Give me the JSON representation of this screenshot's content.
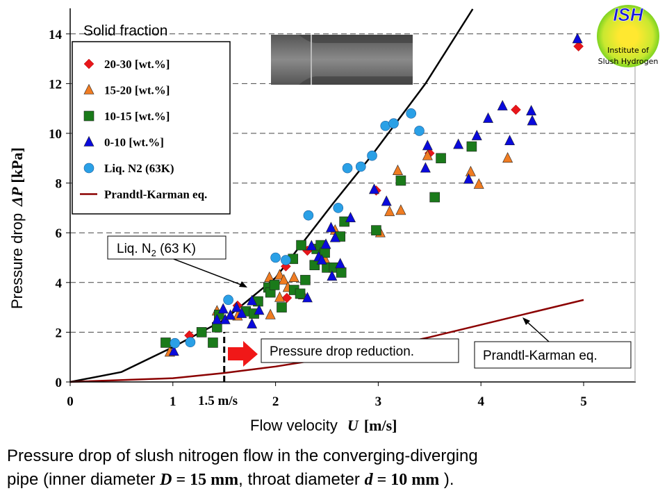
{
  "chart_data": {
    "type": "scatter",
    "xlabel": "Flow velocity",
    "xlabel_symbol": "U",
    "xlabel_unit": "[m/s]",
    "ylabel": "Pressure drop",
    "ylabel_symbol": "ΔP",
    "ylabel_unit": "[kPa]",
    "xlim": [
      0,
      5.5
    ],
    "ylim": [
      0,
      15
    ],
    "xticks": [
      0,
      1,
      2,
      3,
      4,
      5
    ],
    "yticks": [
      0,
      2,
      4,
      6,
      8,
      10,
      12,
      14
    ],
    "grid": "horizontal dashed",
    "legend_placement": "top-left",
    "legend_title": "Solid fraction",
    "series": [
      {
        "name": "20-30 [wt.%]",
        "marker": "diamond",
        "color": "#e8161b",
        "points": [
          [
            1.16,
            1.87
          ],
          [
            1.63,
            3.07
          ],
          [
            2.1,
            4.65
          ],
          [
            2.11,
            3.38
          ],
          [
            2.31,
            5.28
          ],
          [
            2.98,
            7.7
          ],
          [
            3.5,
            9.2
          ],
          [
            4.34,
            10.95
          ],
          [
            4.95,
            13.5
          ]
        ]
      },
      {
        "name": "15-20 [wt.%]",
        "marker": "triangle",
        "color": "#f07c22",
        "points": [
          [
            0.97,
            1.2
          ],
          [
            1.43,
            2.85
          ],
          [
            1.63,
            2.65
          ],
          [
            1.94,
            4.2
          ],
          [
            1.95,
            2.7
          ],
          [
            2.04,
            4.3
          ],
          [
            2.04,
            3.4
          ],
          [
            2.08,
            4.1
          ],
          [
            2.12,
            3.8
          ],
          [
            2.18,
            4.2
          ],
          [
            2.27,
            3.5
          ],
          [
            2.48,
            4.95
          ],
          [
            2.58,
            6.1
          ],
          [
            3.02,
            6.0
          ],
          [
            3.11,
            6.85
          ],
          [
            3.19,
            8.5
          ],
          [
            3.22,
            6.9
          ],
          [
            3.48,
            9.1
          ],
          [
            3.9,
            8.45
          ],
          [
            3.98,
            7.95
          ],
          [
            4.26,
            9.0
          ]
        ]
      },
      {
        "name": "10-15 [wt.%]",
        "marker": "square",
        "color": "#1a7a1a",
        "points": [
          [
            0.93,
            1.58
          ],
          [
            1.28,
            2.0
          ],
          [
            1.39,
            1.58
          ],
          [
            1.43,
            2.2
          ],
          [
            1.45,
            2.7
          ],
          [
            1.71,
            2.84
          ],
          [
            1.79,
            2.75
          ],
          [
            1.83,
            3.24
          ],
          [
            1.93,
            3.8
          ],
          [
            1.95,
            3.6
          ],
          [
            1.99,
            3.9
          ],
          [
            2.06,
            3.0
          ],
          [
            2.17,
            4.95
          ],
          [
            2.18,
            3.7
          ],
          [
            2.24,
            3.55
          ],
          [
            2.25,
            5.5
          ],
          [
            2.29,
            4.1
          ],
          [
            2.38,
            4.7
          ],
          [
            2.4,
            5.35
          ],
          [
            2.44,
            5.5
          ],
          [
            2.48,
            5.2
          ],
          [
            2.5,
            4.6
          ],
          [
            2.57,
            4.6
          ],
          [
            2.63,
            5.85
          ],
          [
            2.64,
            4.4
          ],
          [
            2.67,
            6.45
          ],
          [
            2.98,
            6.1
          ],
          [
            3.22,
            8.1
          ],
          [
            3.55,
            7.43
          ],
          [
            3.61,
            9.0
          ],
          [
            3.91,
            9.47
          ]
        ]
      },
      {
        "name": " 0-10 [wt.%]",
        "marker": "triangle",
        "color": "#0a0adc",
        "points": [
          [
            1.01,
            1.23
          ],
          [
            1.43,
            2.5
          ],
          [
            1.49,
            2.93
          ],
          [
            1.51,
            2.5
          ],
          [
            1.56,
            2.68
          ],
          [
            1.62,
            2.99
          ],
          [
            1.67,
            2.75
          ],
          [
            1.77,
            2.33
          ],
          [
            1.77,
            3.26
          ],
          [
            1.84,
            2.88
          ],
          [
            2.31,
            3.38
          ],
          [
            2.35,
            5.47
          ],
          [
            2.42,
            5.03
          ],
          [
            2.45,
            4.9
          ],
          [
            2.49,
            5.53
          ],
          [
            2.54,
            6.2
          ],
          [
            2.55,
            4.25
          ],
          [
            2.58,
            5.8
          ],
          [
            2.63,
            4.75
          ],
          [
            2.73,
            6.6
          ],
          [
            2.96,
            7.74
          ],
          [
            3.08,
            7.26
          ],
          [
            3.46,
            8.6
          ],
          [
            3.48,
            9.5
          ],
          [
            3.78,
            9.55
          ],
          [
            3.88,
            8.15
          ],
          [
            3.96,
            9.9
          ],
          [
            4.07,
            10.6
          ],
          [
            4.21,
            11.1
          ],
          [
            4.28,
            9.7
          ],
          [
            4.49,
            10.9
          ],
          [
            4.5,
            10.5
          ],
          [
            4.94,
            13.8
          ]
        ]
      },
      {
        "name": "Liq. N2 (63K)",
        "marker": "circle",
        "color": "#2aa0e6",
        "points": [
          [
            1.02,
            1.56
          ],
          [
            1.17,
            1.6
          ],
          [
            1.54,
            3.3
          ],
          [
            2.0,
            5.0
          ],
          [
            2.1,
            4.9
          ],
          [
            2.32,
            6.7
          ],
          [
            2.61,
            7.0
          ],
          [
            2.7,
            8.6
          ],
          [
            2.83,
            8.66
          ],
          [
            2.94,
            9.1
          ],
          [
            3.07,
            10.3
          ],
          [
            3.15,
            10.4
          ],
          [
            3.32,
            10.8
          ],
          [
            3.4,
            10.1
          ]
        ]
      },
      {
        "name": "Prandtl-Karman eq.",
        "marker": "line",
        "color": "#8b0000",
        "points": [
          [
            0,
            0
          ],
          [
            1,
            0.15
          ],
          [
            1.5,
            0.36
          ],
          [
            2,
            0.62
          ],
          [
            2.5,
            0.95
          ],
          [
            3,
            1.35
          ],
          [
            3.5,
            1.8
          ],
          [
            4,
            2.3
          ],
          [
            4.5,
            2.8
          ],
          [
            5,
            3.3
          ]
        ]
      }
    ],
    "liq_n2_curve": {
      "color": "#000000",
      "points": [
        [
          0,
          0
        ],
        [
          0.5,
          0.4
        ],
        [
          1,
          1.4
        ],
        [
          1.5,
          2.5
        ],
        [
          2,
          4.19
        ],
        [
          2.56,
          7.18
        ],
        [
          2.94,
          9.13
        ],
        [
          3.46,
          12.0
        ],
        [
          3.92,
          15
        ]
      ]
    },
    "annotations": {
      "liq_n2": "Liq. N",
      "liq_n2_sub": "2",
      "liq_n2_rest": " (63 K)",
      "prandtl": "Prandtl-Karman eq.",
      "reduction": "Pressure drop reduction.",
      "marker_velocity": "1.5 m/s",
      "marker_x": 1.5
    }
  },
  "logo": {
    "title": "ISH",
    "line1": "Institute of",
    "line2": "Slush Hydrogen"
  },
  "caption": {
    "line1": "Pressure drop of slush nitrogen flow in the converging-diverging",
    "line2a": "pipe (inner diameter ",
    "D": "D",
    "eq1": " = 15 mm",
    "line2b": ", throat diameter ",
    "d": "d",
    "eq2": " = 10 mm",
    "line2c": " )."
  }
}
